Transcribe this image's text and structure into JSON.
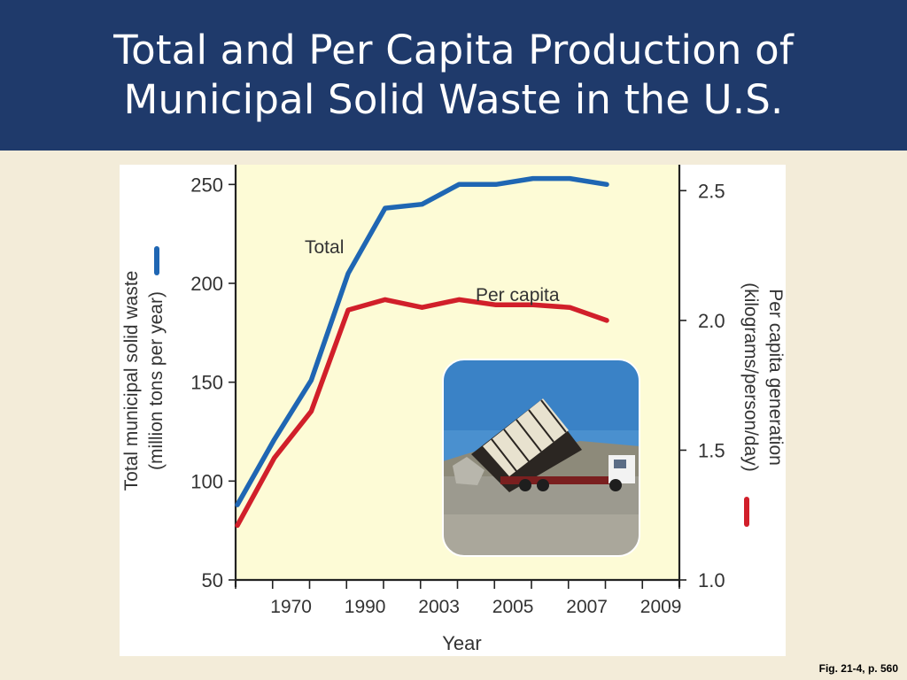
{
  "slide": {
    "title_line1": "Total and Per Capita Production of",
    "title_line2": "Municipal Solid Waste in the U.S.",
    "caption": "Fig. 21-4, p. 560"
  },
  "colors": {
    "header_bg": "#1f3a6b",
    "plot_bg": "#fdfbd6",
    "total_series": "#1f66b3",
    "per_capita_series": "#d11f2a"
  },
  "photo": {
    "icon": "dump-truck-photo",
    "subject": "dump truck unloading at landfill"
  },
  "chart_data": {
    "type": "line",
    "xlabel": "Year",
    "x_tick_labels": [
      "1970",
      "1990",
      "2003",
      "2005",
      "2007",
      "2009"
    ],
    "x_tick_count": 13,
    "y_left": {
      "label_line1": "Total municipal solid waste",
      "label_line2": "(million tons per year)",
      "ylim": [
        50,
        260
      ],
      "ticks": [
        50,
        100,
        150,
        200,
        250
      ]
    },
    "y_right": {
      "label_line1": "Per capita generation",
      "label_line2": "(kilograms/person/day)",
      "ylim": [
        1.0,
        2.6
      ],
      "ticks": [
        "1.0",
        "1.5",
        "2.0",
        "2.5"
      ]
    },
    "series": [
      {
        "name": "Total",
        "axis": "left",
        "values": [
          88,
          121,
          151,
          205,
          238,
          240,
          250,
          250,
          253,
          253,
          250
        ]
      },
      {
        "name": "Per capita",
        "axis": "right",
        "values": [
          1.21,
          1.47,
          1.65,
          2.04,
          2.08,
          2.05,
          2.08,
          2.06,
          2.06,
          2.05,
          2.0
        ]
      }
    ],
    "grid": false,
    "legend": "left and right axis labels"
  }
}
